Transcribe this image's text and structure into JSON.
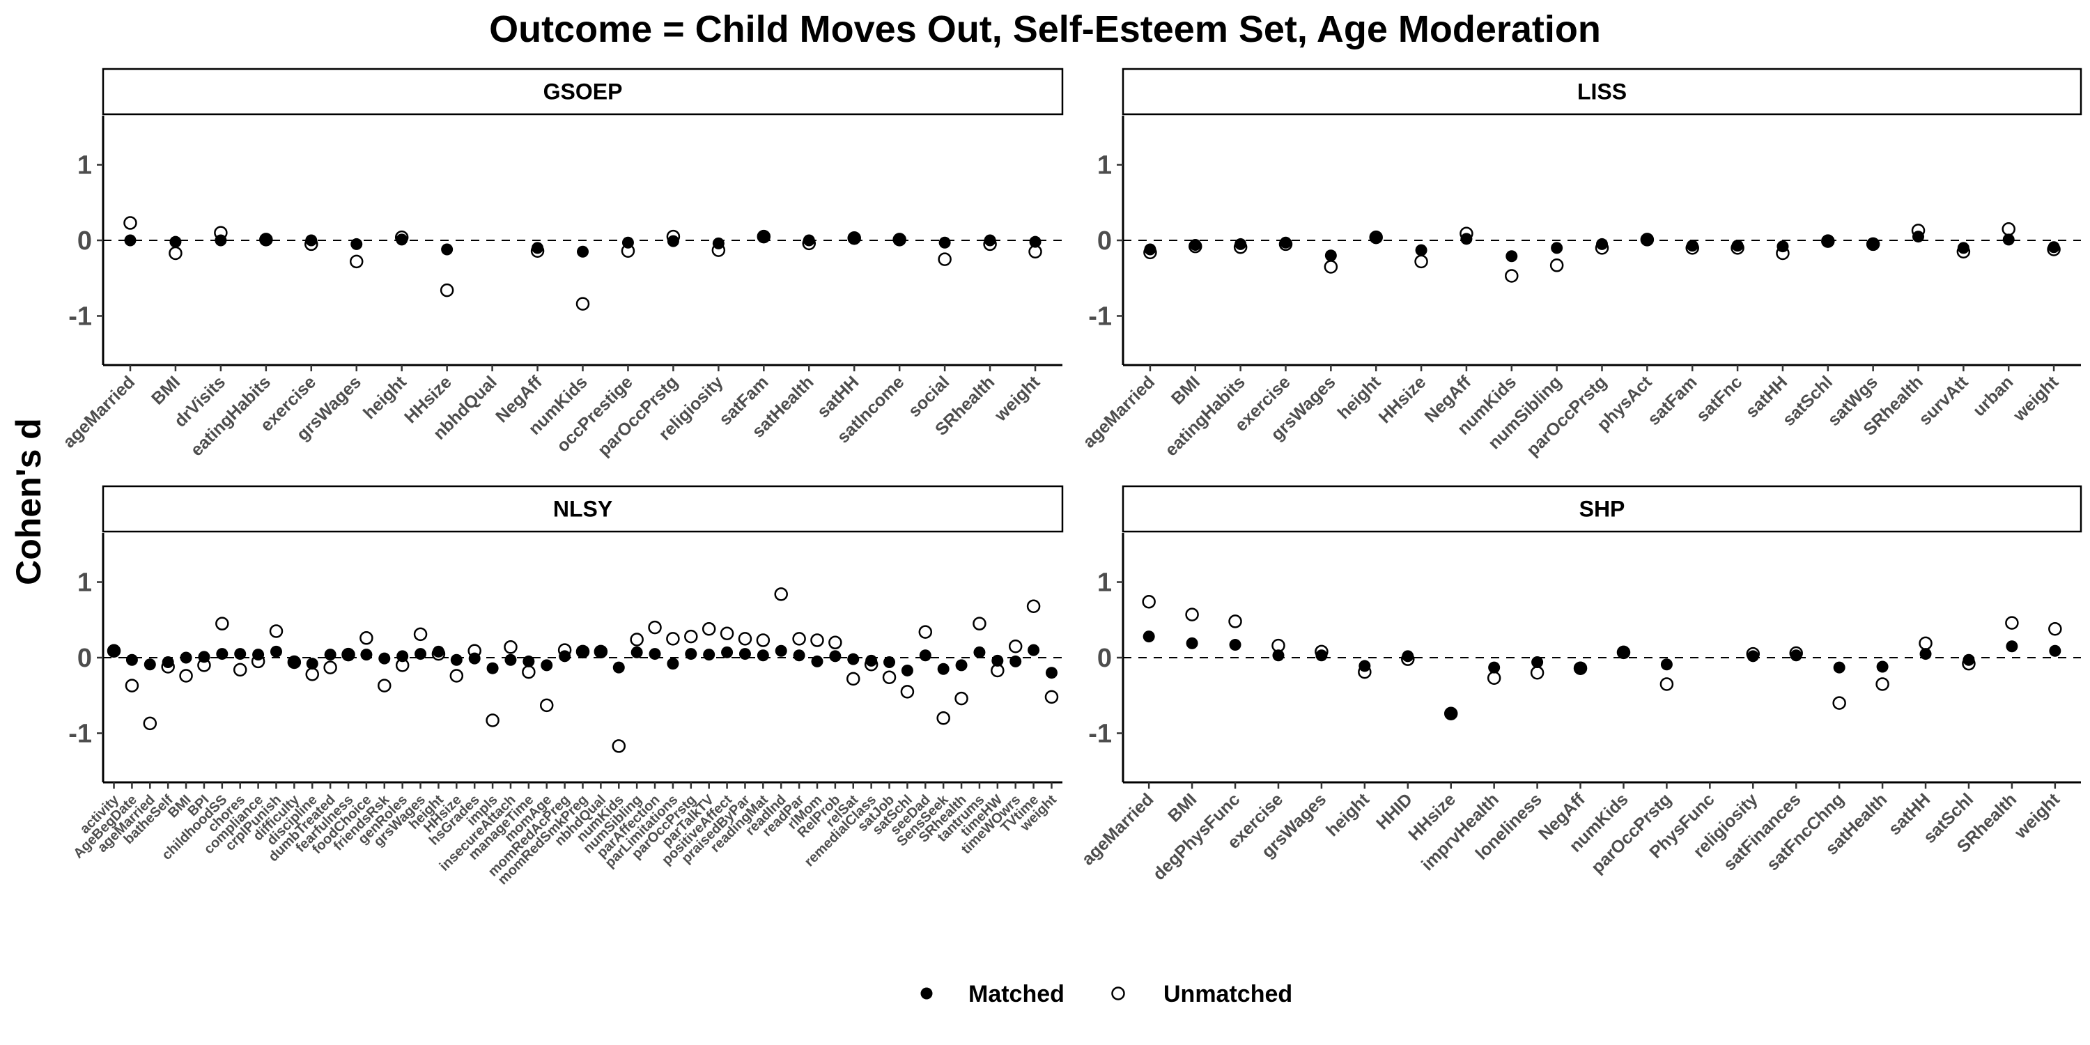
{
  "title": "Outcome = Child Moves Out, Self-Esteem Set, Age Moderation",
  "y_axis_label": "Cohen's d",
  "legend": [
    {
      "label": "Matched",
      "marker": "filled-circle"
    },
    {
      "label": "Unmatched",
      "marker": "open-circle"
    }
  ],
  "colors": {
    "matched": "#000000",
    "unmatched_fill": "#ffffff",
    "axis": "#000000",
    "tick_text": "#4d4d4d"
  },
  "chart_data": [
    {
      "type": "scatter",
      "panel": "GSOEP",
      "ylim": [
        -1.65,
        1.65
      ],
      "yticks": [
        -1,
        0,
        1
      ],
      "reference_line": 0,
      "categories": [
        "ageMarried",
        "BMI",
        "drVisits",
        "eatingHabits",
        "exercise",
        "grsWages",
        "height",
        "HHsize",
        "nbhdQual",
        "NegAff",
        "numKids",
        "occPrestige",
        "parOccPrstg",
        "religiosity",
        "satFam",
        "satHealth",
        "satHH",
        "satIncome",
        "social",
        "SRhealth",
        "weight"
      ],
      "series": [
        {
          "name": "Matched",
          "values": [
            0,
            -0.02,
            0,
            0.01,
            0,
            -0.05,
            0.01,
            -0.12,
            null,
            -0.1,
            -0.15,
            -0.03,
            -0.01,
            -0.04,
            0.04,
            0,
            0.03,
            0.01,
            -0.03,
            0,
            -0.02
          ]
        },
        {
          "name": "Unmatched",
          "values": [
            0.23,
            -0.17,
            0.1,
            0.01,
            -0.05,
            -0.28,
            0.04,
            -0.66,
            null,
            -0.14,
            -0.84,
            -0.14,
            0.05,
            -0.13,
            0.05,
            -0.04,
            0.03,
            0.01,
            -0.25,
            -0.05,
            -0.15
          ]
        }
      ]
    },
    {
      "type": "scatter",
      "panel": "LISS",
      "ylim": [
        -1.65,
        1.65
      ],
      "yticks": [
        -1,
        0,
        1
      ],
      "reference_line": 0,
      "categories": [
        "ageMarried",
        "BMI",
        "eatingHabits",
        "exercise",
        "grsWages",
        "height",
        "HHsize",
        "NegAff",
        "numKids",
        "numSibling",
        "parOccPrstg",
        "physAct",
        "satFam",
        "satFnc",
        "satHH",
        "satSchl",
        "satWgs",
        "SRhealth",
        "survAtt",
        "urban",
        "weight"
      ],
      "series": [
        {
          "name": "Matched",
          "values": [
            -0.12,
            -0.06,
            -0.05,
            -0.03,
            -0.2,
            0.03,
            -0.13,
            0.02,
            -0.21,
            -0.1,
            -0.05,
            0,
            -0.07,
            -0.07,
            -0.08,
            -0.01,
            -0.04,
            0.05,
            -0.1,
            0.01,
            -0.09
          ]
        },
        {
          "name": "Unmatched",
          "values": [
            -0.16,
            -0.08,
            -0.09,
            -0.05,
            -0.35,
            0.04,
            -0.28,
            0.09,
            -0.47,
            -0.33,
            -0.1,
            0.01,
            -0.1,
            -0.1,
            -0.17,
            -0.01,
            -0.05,
            0.13,
            -0.15,
            0.15,
            -0.12
          ]
        }
      ]
    },
    {
      "type": "scatter",
      "panel": "NLSY",
      "ylim": [
        -1.65,
        1.65
      ],
      "yticks": [
        -1,
        0,
        1
      ],
      "reference_line": 0,
      "categories": [
        "activity",
        "AgeBegDate",
        "ageMarried",
        "batheSelf",
        "BMI",
        "BPI",
        "childhoodSS",
        "chores",
        "compliance",
        "crplPunish",
        "difficulty",
        "discipline",
        "dumbTreated",
        "fearfulness",
        "foodChoice",
        "friendsRsk",
        "genRoles",
        "grsWages",
        "height",
        "HHsize",
        "hsGrades",
        "impls",
        "insecureAttach",
        "manageTime",
        "momAge",
        "momRedAcPreg",
        "momRedSmkPreg",
        "nbhdQual",
        "numKids",
        "numSibling",
        "parAffection",
        "parLimitations",
        "parOccPrstg",
        "parTalkTV",
        "positiveAffect",
        "praisedByPar",
        "readingMat",
        "readInd",
        "readPar",
        "rlMom",
        "RelProb",
        "relSat",
        "remedialClass",
        "satJob",
        "satSchl",
        "seeDad",
        "SensSeek",
        "SRhealth",
        "tantrums",
        "timeHW",
        "timeWOwrs",
        "TVtime",
        "weight"
      ],
      "series": [
        {
          "name": "Matched",
          "values": [
            0.09,
            -0.03,
            -0.09,
            -0.06,
            0,
            0.01,
            0.05,
            0.05,
            0.04,
            0.08,
            -0.06,
            -0.08,
            0.04,
            0.04,
            0.04,
            -0.01,
            0.02,
            0.05,
            0.08,
            -0.03,
            -0.01,
            -0.14,
            -0.03,
            -0.05,
            -0.1,
            0.02,
            0.07,
            0.07,
            -0.13,
            0.07,
            0.05,
            -0.08,
            0.05,
            0.04,
            0.07,
            0.05,
            0.03,
            0.09,
            0.03,
            -0.05,
            0.02,
            -0.02,
            -0.04,
            -0.06,
            -0.17,
            0.03,
            -0.15,
            -0.1,
            0.07,
            -0.04,
            -0.05,
            0.1,
            -0.2
          ]
        },
        {
          "name": "Unmatched",
          "values": [
            0.09,
            -0.37,
            -0.87,
            -0.12,
            -0.24,
            -0.1,
            0.45,
            -0.16,
            -0.05,
            0.35,
            -0.06,
            -0.22,
            -0.13,
            0.04,
            0.26,
            -0.37,
            -0.1,
            0.31,
            0.05,
            -0.24,
            0.09,
            -0.83,
            0.14,
            -0.19,
            -0.63,
            0.1,
            0.08,
            0.08,
            -1.17,
            0.24,
            0.4,
            0.25,
            0.28,
            0.38,
            0.32,
            0.25,
            0.23,
            0.84,
            0.25,
            0.23,
            0.2,
            -0.28,
            -0.09,
            -0.26,
            -0.45,
            0.34,
            -0.8,
            -0.54,
            0.45,
            -0.17,
            0.15,
            0.68,
            -0.52
          ]
        }
      ]
    },
    {
      "type": "scatter",
      "panel": "SHP",
      "ylim": [
        -1.65,
        1.65
      ],
      "yticks": [
        -1,
        0,
        1
      ],
      "reference_line": 0,
      "categories": [
        "ageMarried",
        "BMI",
        "degPhysFunc",
        "exercise",
        "grsWages",
        "height",
        "HHID",
        "HHsize",
        "imprvHealth",
        "loneliness",
        "NegAff",
        "numKids",
        "parOccPrstg",
        "PhysFunc",
        "religiosity",
        "satFinances",
        "satFncChng",
        "satHealth",
        "satHH",
        "satSchl",
        "SRhealth",
        "weight"
      ],
      "series": [
        {
          "name": "Matched",
          "values": [
            0.28,
            0.19,
            0.17,
            0.03,
            0.03,
            -0.11,
            0.02,
            -0.74,
            -0.13,
            -0.06,
            -0.14,
            0.07,
            -0.09,
            null,
            0.02,
            0.03,
            -0.13,
            -0.12,
            0.05,
            -0.03,
            0.15,
            0.09
          ]
        },
        {
          "name": "Unmatched",
          "values": [
            0.74,
            0.57,
            0.48,
            0.16,
            0.08,
            -0.19,
            -0.02,
            -0.74,
            -0.27,
            -0.2,
            -0.14,
            0.07,
            -0.35,
            null,
            0.05,
            0.06,
            -0.6,
            -0.35,
            0.19,
            -0.08,
            0.46,
            0.38
          ]
        }
      ]
    }
  ]
}
